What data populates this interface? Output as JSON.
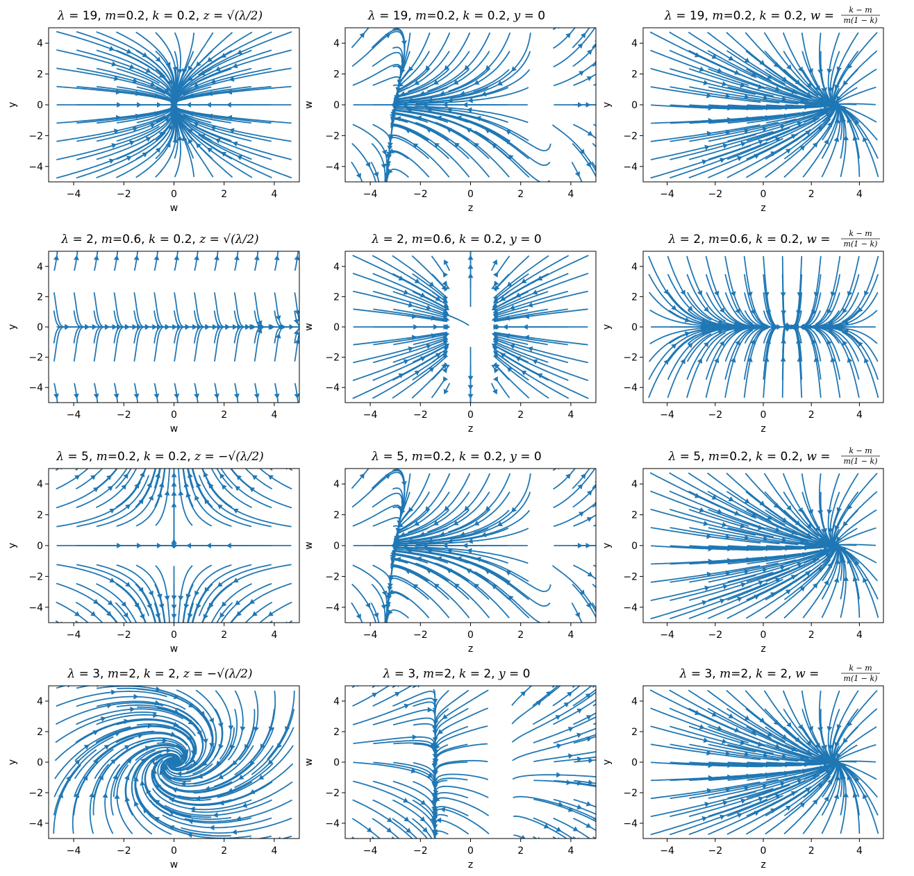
{
  "chart_data": [
    {
      "type": "streamplot",
      "title": {
        "pre": "λ = 19, ",
        "m": "m",
        "mv": "=0.2, ",
        "k": "k",
        "kv": " = 0.2, ",
        "v": "z",
        "rhs": "sqrt_lambda_half"
      },
      "xlabel": "w",
      "ylabel": "y",
      "xlim": [
        -5,
        5
      ],
      "ylim": [
        -5,
        5
      ],
      "xticks": [
        -4,
        -2,
        0,
        2,
        4
      ],
      "yticks": [
        -4,
        -2,
        0,
        2,
        4
      ],
      "color": "#1f77b4",
      "pattern": "node-origin"
    },
    {
      "type": "streamplot",
      "title": {
        "pre": "λ = 19, ",
        "m": "m",
        "mv": "=0.2, ",
        "k": "k",
        "kv": " = 0.2, ",
        "v": "y",
        "rhs": "zero"
      },
      "xlabel": "z",
      "ylabel": "w",
      "xlim": [
        -5,
        5
      ],
      "ylim": [
        -5,
        5
      ],
      "xticks": [
        -4,
        -2,
        0,
        2,
        4
      ],
      "yticks": [
        -4,
        -2,
        0,
        2,
        4
      ],
      "color": "#1f77b4",
      "pattern": "two-saddles"
    },
    {
      "type": "streamplot",
      "title": {
        "pre": "λ = 19, ",
        "m": "m",
        "mv": "=0.2, ",
        "k": "k",
        "kv": " = 0.2, ",
        "v": "w",
        "rhs": "frac"
      },
      "xlabel": "z",
      "ylabel": "y",
      "xlim": [
        -5,
        5
      ],
      "ylim": [
        -5,
        5
      ],
      "xticks": [
        -4,
        -2,
        0,
        2,
        4
      ],
      "yticks": [
        -4,
        -2,
        0,
        2,
        4
      ],
      "color": "#1f77b4",
      "pattern": "node-right"
    },
    {
      "type": "streamplot",
      "title": {
        "pre": "λ = 2, ",
        "m": "m",
        "mv": "=0.6, ",
        "k": "k",
        "kv": " = 0.2, ",
        "v": "z",
        "rhs": "sqrt_lambda_half"
      },
      "xlabel": "w",
      "ylabel": "y",
      "xlim": [
        -5,
        5
      ],
      "ylim": [
        -5,
        5
      ],
      "xticks": [
        -4,
        -2,
        0,
        2,
        4
      ],
      "yticks": [
        -4,
        -2,
        0,
        2,
        4
      ],
      "color": "#1f77b4",
      "pattern": "vertical-bands"
    },
    {
      "type": "streamplot",
      "title": {
        "pre": "λ = 2, ",
        "m": "m",
        "mv": "=0.6, ",
        "k": "k",
        "kv": " = 0.2, ",
        "v": "y",
        "rhs": "zero"
      },
      "xlabel": "z",
      "ylabel": "w",
      "xlim": [
        -5,
        5
      ],
      "ylim": [
        -5,
        5
      ],
      "xticks": [
        -4,
        -2,
        0,
        2,
        4
      ],
      "yticks": [
        -4,
        -2,
        0,
        2,
        4
      ],
      "color": "#1f77b4",
      "pattern": "two-walls"
    },
    {
      "type": "streamplot",
      "title": {
        "pre": "λ = 2, ",
        "m": "m",
        "mv": "=0.6, ",
        "k": "k",
        "kv": " = 0.2, ",
        "v": "w",
        "rhs": "frac"
      },
      "xlabel": "z",
      "ylabel": "y",
      "xlim": [
        -5,
        5
      ],
      "ylim": [
        -5,
        5
      ],
      "xticks": [
        -4,
        -2,
        0,
        2,
        4
      ],
      "yticks": [
        -4,
        -2,
        0,
        2,
        4
      ],
      "color": "#1f77b4",
      "pattern": "horizontal-split"
    },
    {
      "type": "streamplot",
      "title": {
        "pre": "λ = 5, ",
        "m": "m",
        "mv": "=0.2, ",
        "k": "k",
        "kv": " = 0.2, ",
        "v": "z",
        "rhs": "neg_sqrt_lambda_half"
      },
      "xlabel": "w",
      "ylabel": "y",
      "xlim": [
        -5,
        5
      ],
      "ylim": [
        -5,
        5
      ],
      "xticks": [
        -4,
        -2,
        0,
        2,
        4
      ],
      "yticks": [
        -4,
        -2,
        0,
        2,
        4
      ],
      "color": "#1f77b4",
      "pattern": "saddle-origin"
    },
    {
      "type": "streamplot",
      "title": {
        "pre": "λ = 5, ",
        "m": "m",
        "mv": "=0.2, ",
        "k": "k",
        "kv": " = 0.2, ",
        "v": "y",
        "rhs": "zero"
      },
      "xlabel": "z",
      "ylabel": "w",
      "xlim": [
        -5,
        5
      ],
      "ylim": [
        -5,
        5
      ],
      "xticks": [
        -4,
        -2,
        0,
        2,
        4
      ],
      "yticks": [
        -4,
        -2,
        0,
        2,
        4
      ],
      "color": "#1f77b4",
      "pattern": "two-saddles"
    },
    {
      "type": "streamplot",
      "title": {
        "pre": "λ = 5, ",
        "m": "m",
        "mv": "=0.2, ",
        "k": "k",
        "kv": " = 0.2, ",
        "v": "w",
        "rhs": "frac"
      },
      "xlabel": "z",
      "ylabel": "y",
      "xlim": [
        -5,
        5
      ],
      "ylim": [
        -5,
        5
      ],
      "xticks": [
        -4,
        -2,
        0,
        2,
        4
      ],
      "yticks": [
        -4,
        -2,
        0,
        2,
        4
      ],
      "color": "#1f77b4",
      "pattern": "node-right"
    },
    {
      "type": "streamplot",
      "title": {
        "pre": "λ = 3, ",
        "m": "m",
        "mv": "=2, ",
        "k": "k",
        "kv": " = 2, ",
        "v": "z",
        "rhs": "neg_sqrt_lambda_half"
      },
      "xlabel": "w",
      "ylabel": "y",
      "xlim": [
        -5,
        5
      ],
      "ylim": [
        -5,
        5
      ],
      "xticks": [
        -4,
        -2,
        0,
        2,
        4
      ],
      "yticks": [
        -4,
        -2,
        0,
        2,
        4
      ],
      "color": "#1f77b4",
      "pattern": "swirl"
    },
    {
      "type": "streamplot",
      "title": {
        "pre": "λ = 3, ",
        "m": "m",
        "mv": "=2, ",
        "k": "k",
        "kv": " = 2, ",
        "v": "y",
        "rhs": "zero"
      },
      "xlabel": "z",
      "ylabel": "w",
      "xlim": [
        -5,
        5
      ],
      "ylim": [
        -5,
        5
      ],
      "xticks": [
        -4,
        -2,
        0,
        2,
        4
      ],
      "yticks": [
        -4,
        -2,
        0,
        2,
        4
      ],
      "color": "#1f77b4",
      "pattern": "two-saddles-h"
    },
    {
      "type": "streamplot",
      "title": {
        "pre": "λ = 3, ",
        "m": "m",
        "mv": "=2, ",
        "k": "k",
        "kv": " = 2, ",
        "v": "w",
        "rhs": "frac"
      },
      "xlabel": "z",
      "ylabel": "y",
      "xlim": [
        -5,
        5
      ],
      "ylim": [
        -5,
        5
      ],
      "xticks": [
        -4,
        -2,
        0,
        2,
        4
      ],
      "yticks": [
        -4,
        -2,
        0,
        2,
        4
      ],
      "color": "#1f77b4",
      "pattern": "node-right"
    }
  ],
  "symbols": {
    "sqrt_lambda_half": "√(λ/2)",
    "neg_sqrt_lambda_half": "−√(λ/2)",
    "zero": "0",
    "frac_num": "k − m",
    "frac_den": "m(1 − k)",
    "lambda": "λ",
    "two": "2"
  }
}
